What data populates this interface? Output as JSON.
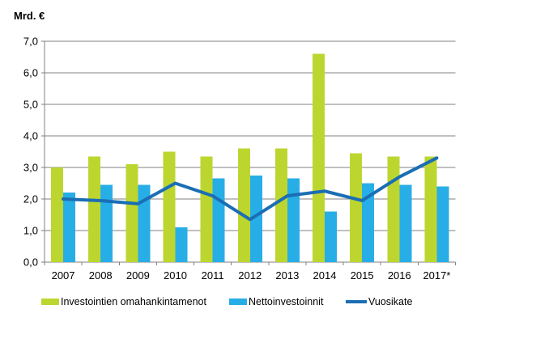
{
  "chart_data": {
    "type": "bar",
    "ylabel": "Mrd. €",
    "xlabel": "",
    "categories": [
      "2007",
      "2008",
      "2009",
      "2010",
      "2011",
      "2012",
      "2013",
      "2014",
      "2015",
      "2016",
      "2017*"
    ],
    "series": [
      {
        "name": "Investointien omahankintamenot",
        "type": "bar",
        "color": "#bdd62f",
        "values": [
          3.0,
          3.35,
          3.1,
          3.5,
          3.35,
          3.6,
          3.6,
          6.6,
          3.45,
          3.35,
          3.35
        ]
      },
      {
        "name": "Nettoinvestoinnit",
        "type": "bar",
        "color": "#27aee6",
        "values": [
          2.2,
          2.45,
          2.45,
          1.1,
          2.65,
          2.75,
          2.65,
          1.6,
          2.5,
          2.45,
          2.4
        ]
      },
      {
        "name": "Vuosikate",
        "type": "line",
        "color": "#1b6eb4",
        "values": [
          2.0,
          1.95,
          1.85,
          2.5,
          2.1,
          1.35,
          2.1,
          2.25,
          1.95,
          2.7,
          3.3
        ]
      }
    ],
    "ylim": [
      0,
      7
    ],
    "ytick_step": 1.0,
    "ytick_labels": [
      "0,0",
      "1,0",
      "2,0",
      "3,0",
      "4,0",
      "5,0",
      "6,0",
      "7,0"
    ],
    "grid": true,
    "legend_position": "bottom",
    "axis_color": "#808080",
    "text_color": "#000000"
  }
}
